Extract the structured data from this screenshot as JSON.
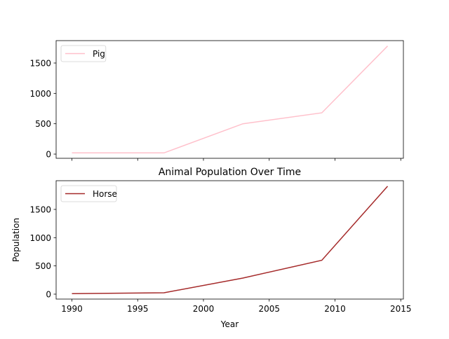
{
  "chart_data": [
    {
      "type": "line",
      "title": "",
      "xlabel": "",
      "ylabel": "",
      "x": [
        1990,
        1997,
        2003,
        2009,
        2014
      ],
      "series": [
        {
          "name": "Pig",
          "values": [
            20,
            20,
            500,
            680,
            1780
          ],
          "color": "#ffc0cb"
        }
      ],
      "xlim": [
        1988.8,
        2015.2
      ],
      "ylim": [
        -69,
        1869
      ],
      "xticks": [
        1990,
        1995,
        2000,
        2005,
        2010,
        2015
      ],
      "xtick_labels_shown": false,
      "yticks": [
        0,
        500,
        1000,
        1500
      ],
      "legend": "top-left",
      "grid": false
    },
    {
      "type": "line",
      "title": "Animal Population Over Time",
      "xlabel": "Year",
      "ylabel": "Population",
      "x": [
        1990,
        1997,
        2003,
        2009,
        2014
      ],
      "series": [
        {
          "name": "Horse",
          "values": [
            10,
            25,
            285,
            600,
            1910
          ],
          "color": "#a52a2a"
        }
      ],
      "xlim": [
        1988.8,
        2015.2
      ],
      "ylim": [
        -87,
        2008
      ],
      "xticks": [
        1990,
        1995,
        2000,
        2005,
        2010,
        2015
      ],
      "xtick_labels_shown": true,
      "yticks": [
        0,
        500,
        1000,
        1500
      ],
      "legend": "top-left",
      "grid": false
    }
  ]
}
